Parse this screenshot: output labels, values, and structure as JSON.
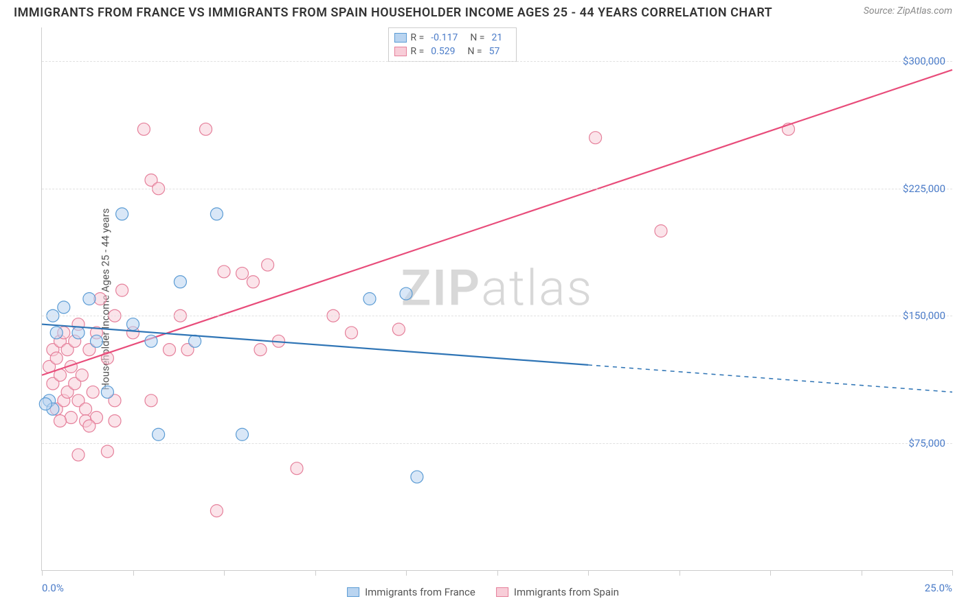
{
  "title": "IMMIGRANTS FROM FRANCE VS IMMIGRANTS FROM SPAIN HOUSEHOLDER INCOME AGES 25 - 44 YEARS CORRELATION CHART",
  "source": "Source: ZipAtlas.com",
  "watermark_prefix": "ZIP",
  "watermark_suffix": "atlas",
  "yaxis_title": "Householder Income Ages 25 - 44 years",
  "chart": {
    "type": "scatter",
    "background_color": "#ffffff",
    "grid_color": "#e0e0e0",
    "axis_color": "#cccccc",
    "tick_label_color": "#4a7bc8",
    "title_fontsize": 18,
    "label_fontsize": 15,
    "xlim": [
      0,
      25
    ],
    "ylim": [
      0,
      320000
    ],
    "ygrid": [
      75000,
      150000,
      225000,
      300000
    ],
    "ygrid_labels": [
      "$75,000",
      "$150,000",
      "$225,000",
      "$300,000"
    ],
    "xticks": [
      0,
      2.5,
      5,
      7.5,
      10,
      12.5,
      15,
      17.5,
      20,
      22.5,
      25
    ],
    "x_min_label": "0.0%",
    "x_max_label": "25.0%",
    "marker_radius": 9,
    "marker_stroke_width": 1.2,
    "line_width": 2.2
  },
  "series": {
    "france": {
      "label": "Immigrants from France",
      "fill": "#b9d4f0",
      "stroke": "#5a9bd4",
      "line_color": "#2e74b5",
      "R": "-0.117",
      "N": "21",
      "trend": {
        "x1": 0,
        "y1": 145000,
        "x2": 25,
        "y2": 105000,
        "solid_to_x": 15
      },
      "points": [
        [
          0.2,
          100000
        ],
        [
          0.3,
          95000
        ],
        [
          0.3,
          150000
        ],
        [
          0.4,
          140000
        ],
        [
          0.6,
          155000
        ],
        [
          1.0,
          140000
        ],
        [
          1.3,
          160000
        ],
        [
          1.5,
          135000
        ],
        [
          1.8,
          105000
        ],
        [
          2.2,
          210000
        ],
        [
          2.5,
          145000
        ],
        [
          3.0,
          135000
        ],
        [
          3.2,
          80000
        ],
        [
          3.8,
          170000
        ],
        [
          4.2,
          135000
        ],
        [
          4.8,
          210000
        ],
        [
          5.5,
          80000
        ],
        [
          9.0,
          160000
        ],
        [
          10.0,
          163000
        ],
        [
          10.3,
          55000
        ],
        [
          0.1,
          98000
        ]
      ]
    },
    "spain": {
      "label": "Immigrants from Spain",
      "fill": "#f8cdd8",
      "stroke": "#e57f9a",
      "line_color": "#e84c7a",
      "R": "0.529",
      "N": "57",
      "trend": {
        "x1": 0,
        "y1": 115000,
        "x2": 25,
        "y2": 295000,
        "solid_to_x": 25
      },
      "points": [
        [
          0.2,
          120000
        ],
        [
          0.3,
          110000
        ],
        [
          0.3,
          130000
        ],
        [
          0.4,
          95000
        ],
        [
          0.4,
          125000
        ],
        [
          0.5,
          115000
        ],
        [
          0.5,
          135000
        ],
        [
          0.6,
          140000
        ],
        [
          0.6,
          100000
        ],
        [
          0.7,
          105000
        ],
        [
          0.7,
          130000
        ],
        [
          0.8,
          120000
        ],
        [
          0.8,
          90000
        ],
        [
          0.9,
          110000
        ],
        [
          0.9,
          135000
        ],
        [
          1.0,
          100000
        ],
        [
          1.0,
          145000
        ],
        [
          1.1,
          115000
        ],
        [
          1.2,
          95000
        ],
        [
          1.2,
          88000
        ],
        [
          1.3,
          130000
        ],
        [
          1.4,
          105000
        ],
        [
          1.5,
          140000
        ],
        [
          1.5,
          90000
        ],
        [
          1.6,
          160000
        ],
        [
          1.8,
          125000
        ],
        [
          1.8,
          70000
        ],
        [
          2.0,
          150000
        ],
        [
          2.0,
          100000
        ],
        [
          2.2,
          165000
        ],
        [
          2.5,
          140000
        ],
        [
          2.8,
          260000
        ],
        [
          3.0,
          230000
        ],
        [
          3.0,
          100000
        ],
        [
          3.2,
          225000
        ],
        [
          3.5,
          130000
        ],
        [
          3.8,
          150000
        ],
        [
          4.0,
          130000
        ],
        [
          4.5,
          260000
        ],
        [
          4.8,
          35000
        ],
        [
          5.0,
          176000
        ],
        [
          5.5,
          175000
        ],
        [
          5.8,
          170000
        ],
        [
          6.0,
          130000
        ],
        [
          6.2,
          180000
        ],
        [
          6.5,
          135000
        ],
        [
          7.0,
          60000
        ],
        [
          8.0,
          150000
        ],
        [
          8.5,
          140000
        ],
        [
          9.8,
          142000
        ],
        [
          15.2,
          255000
        ],
        [
          17.0,
          200000
        ],
        [
          20.5,
          260000
        ],
        [
          1.0,
          68000
        ],
        [
          1.3,
          85000
        ],
        [
          0.5,
          88000
        ],
        [
          2.0,
          88000
        ]
      ]
    }
  }
}
